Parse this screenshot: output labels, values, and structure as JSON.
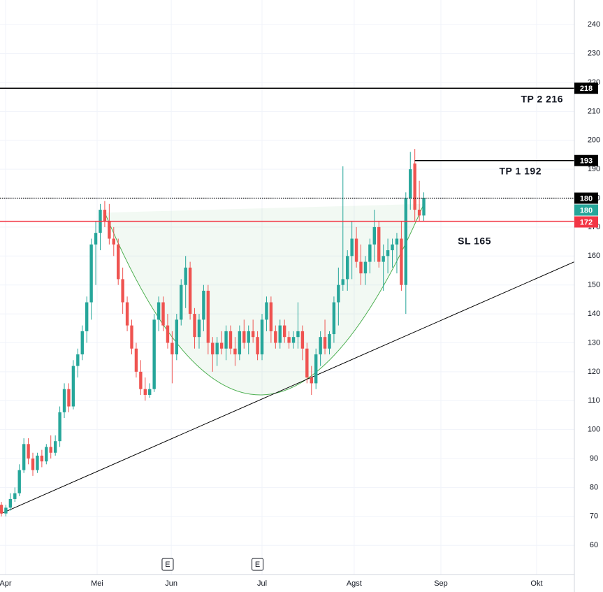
{
  "chart_data": {
    "type": "candlestick",
    "up_color": "#26a69a",
    "down_color": "#ef5350",
    "xlim": [
      -0.31,
      127.5
    ],
    "ylim": [
      49.9,
      248.5
    ],
    "xticks": [
      {
        "value": 0.93,
        "label": "Apr"
      },
      {
        "value": 21.3,
        "label": "Mei"
      },
      {
        "value": 37.8,
        "label": "Jun"
      },
      {
        "value": 58,
        "label": "Jul"
      },
      {
        "value": 78.5,
        "label": "Agst"
      },
      {
        "value": 97.8,
        "label": "Sep"
      },
      {
        "value": 119.1,
        "label": "Okt"
      }
    ],
    "yticks": [
      60,
      70,
      80,
      90,
      100,
      110,
      120,
      130,
      140,
      150,
      160,
      170,
      180,
      190,
      200,
      210,
      220,
      230,
      240
    ],
    "grid": true,
    "x": [
      0,
      1,
      2,
      3,
      4,
      5,
      6,
      7,
      8,
      9,
      10,
      11,
      12,
      13,
      14,
      15,
      16,
      17,
      18,
      19,
      20,
      21,
      22,
      23,
      24,
      25,
      26,
      27,
      28,
      29,
      30,
      31,
      32,
      33,
      34,
      35,
      36,
      37,
      38,
      39,
      40,
      41,
      42,
      43,
      44,
      45,
      46,
      47,
      48,
      49,
      50,
      51,
      52,
      53,
      54,
      55,
      56,
      57,
      58,
      59,
      60,
      61,
      62,
      63,
      64,
      65,
      66,
      67,
      68,
      69,
      70,
      71,
      72,
      73,
      74,
      75,
      76,
      77,
      78,
      79,
      80,
      81,
      82,
      83,
      84,
      85,
      86,
      87,
      88,
      89,
      90,
      91,
      92,
      93,
      94
    ],
    "open": [
      74,
      71,
      73,
      76,
      78,
      86,
      95,
      90,
      86,
      91,
      89,
      94,
      92,
      96,
      106,
      114,
      108,
      122,
      126,
      134,
      144,
      164,
      168,
      176,
      172,
      166,
      164,
      152,
      144,
      136,
      128,
      120,
      114,
      112,
      114,
      138,
      144,
      136,
      130,
      126,
      138,
      150,
      156,
      140,
      132,
      138,
      148,
      130,
      126,
      130,
      128,
      134,
      128,
      126,
      134,
      130,
      134,
      132,
      126,
      138,
      144,
      134,
      130,
      136,
      132,
      130,
      132,
      134,
      128,
      118,
      116,
      126,
      132,
      128,
      133,
      144,
      150,
      152,
      160,
      166,
      158,
      154,
      158,
      164,
      170,
      158,
      160,
      162,
      164,
      166,
      150,
      180,
      192,
      176,
      174
    ],
    "high": [
      75,
      74,
      78,
      80,
      88,
      97,
      97,
      92,
      92,
      93,
      95,
      98,
      98,
      108,
      116,
      116,
      124,
      128,
      136,
      146,
      166,
      172,
      178,
      179,
      178,
      170,
      166,
      156,
      146,
      138,
      130,
      124,
      118,
      116,
      140,
      146,
      146,
      140,
      134,
      140,
      152,
      160,
      158,
      142,
      140,
      150,
      150,
      132,
      132,
      134,
      136,
      136,
      132,
      136,
      138,
      136,
      138,
      134,
      140,
      146,
      146,
      136,
      138,
      138,
      134,
      134,
      144,
      136,
      130,
      122,
      128,
      134,
      138,
      134,
      146,
      156,
      191,
      162,
      172,
      170,
      164,
      160,
      166,
      176,
      172,
      164,
      166,
      166,
      168,
      172,
      182,
      196,
      197,
      186,
      182
    ],
    "low": [
      70,
      70,
      72,
      75,
      77,
      85,
      88,
      84,
      85,
      87,
      88,
      90,
      91,
      94,
      104,
      106,
      107,
      118,
      124,
      130,
      138,
      150,
      162,
      170,
      164,
      160,
      150,
      140,
      134,
      126,
      118,
      112,
      110,
      111,
      113,
      134,
      134,
      128,
      116,
      124,
      136,
      142,
      138,
      128,
      128,
      134,
      126,
      120,
      122,
      126,
      124,
      126,
      122,
      124,
      128,
      126,
      130,
      124,
      124,
      134,
      130,
      128,
      128,
      130,
      128,
      128,
      128,
      124,
      116,
      112,
      114,
      122,
      126,
      126,
      130,
      136,
      148,
      148,
      152,
      156,
      150,
      150,
      154,
      158,
      156,
      148,
      154,
      156,
      154,
      148,
      140,
      176,
      172,
      172,
      172
    ],
    "close": [
      71,
      73,
      76,
      78,
      86,
      95,
      90,
      86,
      91,
      89,
      94,
      92,
      96,
      106,
      114,
      108,
      122,
      126,
      134,
      144,
      164,
      168,
      176,
      172,
      166,
      164,
      152,
      144,
      136,
      128,
      120,
      114,
      112,
      114,
      138,
      144,
      136,
      130,
      126,
      138,
      150,
      156,
      140,
      132,
      138,
      148,
      130,
      126,
      130,
      128,
      134,
      128,
      126,
      134,
      130,
      134,
      132,
      126,
      138,
      144,
      134,
      130,
      136,
      132,
      130,
      132,
      134,
      128,
      118,
      116,
      126,
      132,
      128,
      133,
      144,
      150,
      152,
      160,
      166,
      158,
      154,
      158,
      164,
      170,
      158,
      160,
      162,
      164,
      166,
      150,
      180,
      190,
      176,
      174,
      180
    ],
    "levels": [
      {
        "value": 218,
        "color": "#000000",
        "style": "solid"
      },
      {
        "value": 193,
        "color": "#000000",
        "style": "solid",
        "from_x": 92
      },
      {
        "value": 180,
        "color": "#000000",
        "style": "dotted"
      },
      {
        "value": 172,
        "color": "#f23645",
        "style": "solid"
      }
    ],
    "last_price": {
      "value": 180,
      "color": "#26a69a"
    },
    "trendline": {
      "points": [
        [
          0,
          71
        ],
        [
          127.5,
          158
        ]
      ],
      "color": "#000000"
    },
    "cup": {
      "points": [
        [
          23,
          175
        ],
        [
          58,
          112
        ],
        [
          94,
          178
        ]
      ],
      "color": "#4caf50"
    },
    "earnings": [
      {
        "x": 37,
        "label": "E"
      },
      {
        "x": 57,
        "label": "E"
      }
    ],
    "annotations": [
      "TP 2 216",
      "TP 1 192",
      "SL 165"
    ]
  }
}
